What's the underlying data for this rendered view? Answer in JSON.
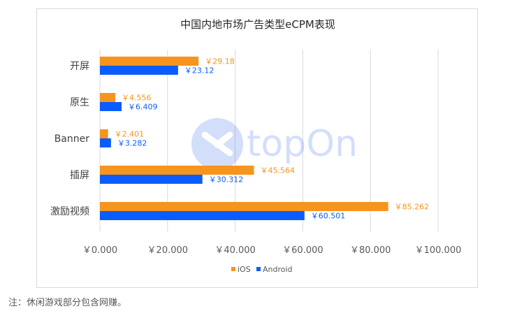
{
  "chart_data": {
    "type": "bar",
    "orientation": "horizontal",
    "title": "中国内地市场广告类型eCPM表现",
    "categories": [
      "开屏",
      "原生",
      "Banner",
      "插屏",
      "激励视频"
    ],
    "series": [
      {
        "name": "iOS",
        "color": "#f7941d",
        "values": [
          29.18,
          4.556,
          2.401,
          45.564,
          85.262
        ],
        "labels": [
          "￥29.18",
          "￥4.556",
          "￥2.401",
          "￥45.564",
          "￥85.262"
        ]
      },
      {
        "name": "Android",
        "color": "#0b5cff",
        "values": [
          23.12,
          6.409,
          3.282,
          30.312,
          60.501
        ],
        "labels": [
          "￥23.12",
          "￥6.409",
          "￥3.282",
          "￥30.312",
          "￥60.501"
        ]
      }
    ],
    "xlim": [
      0,
      100
    ],
    "xticks": [
      0,
      20,
      40,
      60,
      80,
      100
    ],
    "xtick_labels": [
      "￥0.000",
      "￥20.000",
      "￥40.000",
      "￥60.000",
      "￥80.000",
      "￥100.000"
    ],
    "grid": true,
    "legend_position": "bottom"
  },
  "watermark": "topOn",
  "footnote": "注：休闲游戏部分包含网赚。"
}
